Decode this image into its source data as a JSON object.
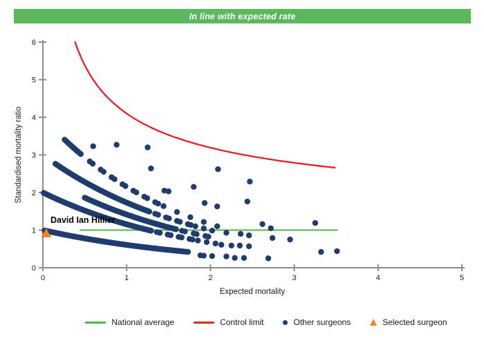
{
  "header": {
    "title": "In line with expected rate"
  },
  "colors": {
    "header_bg": "#5cb85c",
    "header_text": "#ffffff",
    "national_average": "#4cb848",
    "control_limit": "#ed1c24",
    "other_surgeons": "#1e3c6e",
    "selected_surgeon": "#f58220",
    "axis": "#8c8c8c",
    "text": "#1a1a1a"
  },
  "chart_data": {
    "type": "scatter",
    "title": "",
    "xlabel": "Expected mortality",
    "ylabel": "Standardised mortality ratio",
    "xlim": [
      0,
      5
    ],
    "ylim": [
      0,
      6
    ],
    "xticks": [
      0,
      1,
      2,
      3,
      4,
      5
    ],
    "yticks": [
      0,
      1,
      2,
      3,
      4,
      5,
      6
    ],
    "grid": false,
    "legend_position": "bottom",
    "national_average": {
      "label": "National average",
      "y": 1,
      "x_start": 0.44,
      "x_end": 3.52
    },
    "control_limit": {
      "label": "Control limit",
      "formula": "y = 1 + 3.1/sqrt(x)",
      "coefficient": 3.1,
      "baseline": 1,
      "x_start": 0.3844,
      "x_end": 3.5,
      "y_end": 2.66
    },
    "selected_surgeon": {
      "label": "Selected surgeon",
      "name": "David Ian Hillier",
      "x": 0.04,
      "y": 0.92
    },
    "other_surgeons": {
      "label": "Other surgeons",
      "note": "dense chains of overlapping surgeon points following y = A*exp(-k*x), thinning to dashes then single dots at higher expected mortality",
      "chains": [
        {
          "A": 1.0,
          "k": 0.5,
          "segments": [
            {
              "mode": "dense",
              "from": 0.02,
              "to": 1.74
            }
          ]
        },
        {
          "A": 2.0,
          "k": 0.55,
          "segments": [
            {
              "mode": "dense",
              "from": 0.01,
              "to": 1.3
            },
            {
              "mode": "pairs",
              "from": 1.36,
              "to": 1.78,
              "interval": 0.13
            },
            {
              "mode": "dots",
              "from": 1.85,
              "to": 2.06,
              "step": 0.105
            }
          ]
        },
        {
          "A": 2.45,
          "k": 0.55,
          "segments": [
            {
              "mode": "dense",
              "from": 0.5,
              "to": 1.6
            },
            {
              "mode": "pairs",
              "from": 1.66,
              "to": 1.98,
              "interval": 0.14
            }
          ]
        },
        {
          "A": 3.0,
          "k": 0.55,
          "segments": [
            {
              "mode": "dense",
              "from": 0.15,
              "to": 1.28
            },
            {
              "mode": "pairs",
              "from": 1.34,
              "to": 1.74,
              "interval": 0.13
            },
            {
              "mode": "dots",
              "from": 1.82,
              "to": 2.02,
              "step": 0.1
            }
          ]
        },
        {
          "A": 4.0,
          "k": 0.62,
          "segments": [
            {
              "mode": "dense",
              "from": 0.26,
              "to": 0.46
            },
            {
              "mode": "pairs",
              "from": 0.56,
              "to": 1.34,
              "interval": 0.13
            },
            {
              "mode": "dots",
              "from": 1.44,
              "to": 2.08,
              "step": 0.16
            }
          ]
        }
      ],
      "points": [
        [
          0.6,
          3.23
        ],
        [
          0.88,
          3.27
        ],
        [
          1.25,
          3.2
        ],
        [
          1.29,
          2.64
        ],
        [
          2.09,
          2.62
        ],
        [
          2.47,
          2.29
        ],
        [
          1.45,
          2.05
        ],
        [
          1.5,
          2.03
        ],
        [
          1.8,
          2.15
        ],
        [
          1.93,
          1.72
        ],
        [
          2.08,
          1.63
        ],
        [
          2.44,
          1.76
        ],
        [
          2.62,
          1.16
        ],
        [
          2.72,
          1.05
        ],
        [
          3.25,
          1.19
        ],
        [
          2.19,
          0.93
        ],
        [
          2.36,
          0.9
        ],
        [
          2.46,
          0.86
        ],
        [
          2.74,
          0.79
        ],
        [
          2.95,
          0.75
        ],
        [
          2.13,
          0.61
        ],
        [
          2.25,
          0.59
        ],
        [
          2.35,
          0.59
        ],
        [
          2.46,
          0.57
        ],
        [
          1.88,
          0.33
        ],
        [
          1.92,
          0.32
        ],
        [
          2.02,
          0.31
        ],
        [
          2.19,
          0.3
        ],
        [
          2.29,
          0.26
        ],
        [
          2.4,
          0.26
        ],
        [
          2.69,
          0.25
        ],
        [
          3.32,
          0.42
        ],
        [
          3.51,
          0.44
        ]
      ]
    }
  },
  "legend": {
    "items": [
      {
        "label": "National average",
        "swatch": "line",
        "color_key": "national_average"
      },
      {
        "label": "Control limit",
        "swatch": "line",
        "color_key": "control_limit"
      },
      {
        "label": "Other surgeons",
        "swatch": "dot",
        "color_key": "other_surgeons"
      },
      {
        "label": "Selected surgeon",
        "swatch": "triangle",
        "color_key": "selected_surgeon"
      }
    ]
  }
}
